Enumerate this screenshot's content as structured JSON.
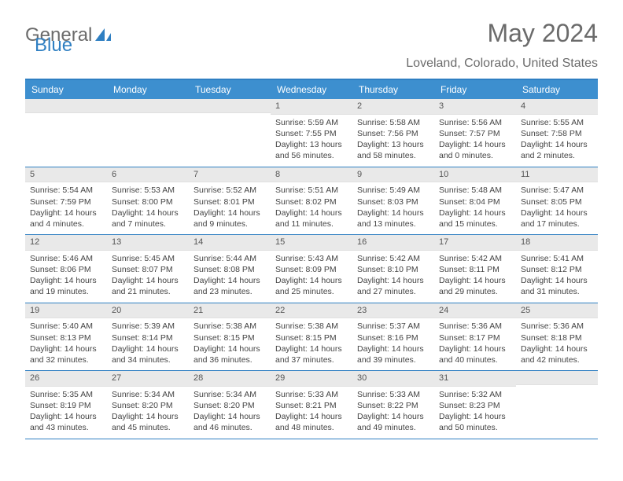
{
  "logo": {
    "part1": "General",
    "part2": "Blue"
  },
  "title": "May 2024",
  "location": "Loveland, Colorado, United States",
  "colors": {
    "header_bar": "#3d8fcf",
    "border": "#2f7fc2",
    "daynum_bg": "#e9e9e9",
    "text": "#444444",
    "title_color": "#6b6b6b"
  },
  "weekdays": [
    "Sunday",
    "Monday",
    "Tuesday",
    "Wednesday",
    "Thursday",
    "Friday",
    "Saturday"
  ],
  "weeks": [
    [
      null,
      null,
      null,
      {
        "n": "1",
        "sunrise": "Sunrise: 5:59 AM",
        "sunset": "Sunset: 7:55 PM",
        "daylight": "Daylight: 13 hours and 56 minutes."
      },
      {
        "n": "2",
        "sunrise": "Sunrise: 5:58 AM",
        "sunset": "Sunset: 7:56 PM",
        "daylight": "Daylight: 13 hours and 58 minutes."
      },
      {
        "n": "3",
        "sunrise": "Sunrise: 5:56 AM",
        "sunset": "Sunset: 7:57 PM",
        "daylight": "Daylight: 14 hours and 0 minutes."
      },
      {
        "n": "4",
        "sunrise": "Sunrise: 5:55 AM",
        "sunset": "Sunset: 7:58 PM",
        "daylight": "Daylight: 14 hours and 2 minutes."
      }
    ],
    [
      {
        "n": "5",
        "sunrise": "Sunrise: 5:54 AM",
        "sunset": "Sunset: 7:59 PM",
        "daylight": "Daylight: 14 hours and 4 minutes."
      },
      {
        "n": "6",
        "sunrise": "Sunrise: 5:53 AM",
        "sunset": "Sunset: 8:00 PM",
        "daylight": "Daylight: 14 hours and 7 minutes."
      },
      {
        "n": "7",
        "sunrise": "Sunrise: 5:52 AM",
        "sunset": "Sunset: 8:01 PM",
        "daylight": "Daylight: 14 hours and 9 minutes."
      },
      {
        "n": "8",
        "sunrise": "Sunrise: 5:51 AM",
        "sunset": "Sunset: 8:02 PM",
        "daylight": "Daylight: 14 hours and 11 minutes."
      },
      {
        "n": "9",
        "sunrise": "Sunrise: 5:49 AM",
        "sunset": "Sunset: 8:03 PM",
        "daylight": "Daylight: 14 hours and 13 minutes."
      },
      {
        "n": "10",
        "sunrise": "Sunrise: 5:48 AM",
        "sunset": "Sunset: 8:04 PM",
        "daylight": "Daylight: 14 hours and 15 minutes."
      },
      {
        "n": "11",
        "sunrise": "Sunrise: 5:47 AM",
        "sunset": "Sunset: 8:05 PM",
        "daylight": "Daylight: 14 hours and 17 minutes."
      }
    ],
    [
      {
        "n": "12",
        "sunrise": "Sunrise: 5:46 AM",
        "sunset": "Sunset: 8:06 PM",
        "daylight": "Daylight: 14 hours and 19 minutes."
      },
      {
        "n": "13",
        "sunrise": "Sunrise: 5:45 AM",
        "sunset": "Sunset: 8:07 PM",
        "daylight": "Daylight: 14 hours and 21 minutes."
      },
      {
        "n": "14",
        "sunrise": "Sunrise: 5:44 AM",
        "sunset": "Sunset: 8:08 PM",
        "daylight": "Daylight: 14 hours and 23 minutes."
      },
      {
        "n": "15",
        "sunrise": "Sunrise: 5:43 AM",
        "sunset": "Sunset: 8:09 PM",
        "daylight": "Daylight: 14 hours and 25 minutes."
      },
      {
        "n": "16",
        "sunrise": "Sunrise: 5:42 AM",
        "sunset": "Sunset: 8:10 PM",
        "daylight": "Daylight: 14 hours and 27 minutes."
      },
      {
        "n": "17",
        "sunrise": "Sunrise: 5:42 AM",
        "sunset": "Sunset: 8:11 PM",
        "daylight": "Daylight: 14 hours and 29 minutes."
      },
      {
        "n": "18",
        "sunrise": "Sunrise: 5:41 AM",
        "sunset": "Sunset: 8:12 PM",
        "daylight": "Daylight: 14 hours and 31 minutes."
      }
    ],
    [
      {
        "n": "19",
        "sunrise": "Sunrise: 5:40 AM",
        "sunset": "Sunset: 8:13 PM",
        "daylight": "Daylight: 14 hours and 32 minutes."
      },
      {
        "n": "20",
        "sunrise": "Sunrise: 5:39 AM",
        "sunset": "Sunset: 8:14 PM",
        "daylight": "Daylight: 14 hours and 34 minutes."
      },
      {
        "n": "21",
        "sunrise": "Sunrise: 5:38 AM",
        "sunset": "Sunset: 8:15 PM",
        "daylight": "Daylight: 14 hours and 36 minutes."
      },
      {
        "n": "22",
        "sunrise": "Sunrise: 5:38 AM",
        "sunset": "Sunset: 8:15 PM",
        "daylight": "Daylight: 14 hours and 37 minutes."
      },
      {
        "n": "23",
        "sunrise": "Sunrise: 5:37 AM",
        "sunset": "Sunset: 8:16 PM",
        "daylight": "Daylight: 14 hours and 39 minutes."
      },
      {
        "n": "24",
        "sunrise": "Sunrise: 5:36 AM",
        "sunset": "Sunset: 8:17 PM",
        "daylight": "Daylight: 14 hours and 40 minutes."
      },
      {
        "n": "25",
        "sunrise": "Sunrise: 5:36 AM",
        "sunset": "Sunset: 8:18 PM",
        "daylight": "Daylight: 14 hours and 42 minutes."
      }
    ],
    [
      {
        "n": "26",
        "sunrise": "Sunrise: 5:35 AM",
        "sunset": "Sunset: 8:19 PM",
        "daylight": "Daylight: 14 hours and 43 minutes."
      },
      {
        "n": "27",
        "sunrise": "Sunrise: 5:34 AM",
        "sunset": "Sunset: 8:20 PM",
        "daylight": "Daylight: 14 hours and 45 minutes."
      },
      {
        "n": "28",
        "sunrise": "Sunrise: 5:34 AM",
        "sunset": "Sunset: 8:20 PM",
        "daylight": "Daylight: 14 hours and 46 minutes."
      },
      {
        "n": "29",
        "sunrise": "Sunrise: 5:33 AM",
        "sunset": "Sunset: 8:21 PM",
        "daylight": "Daylight: 14 hours and 48 minutes."
      },
      {
        "n": "30",
        "sunrise": "Sunrise: 5:33 AM",
        "sunset": "Sunset: 8:22 PM",
        "daylight": "Daylight: 14 hours and 49 minutes."
      },
      {
        "n": "31",
        "sunrise": "Sunrise: 5:32 AM",
        "sunset": "Sunset: 8:23 PM",
        "daylight": "Daylight: 14 hours and 50 minutes."
      },
      null
    ]
  ]
}
